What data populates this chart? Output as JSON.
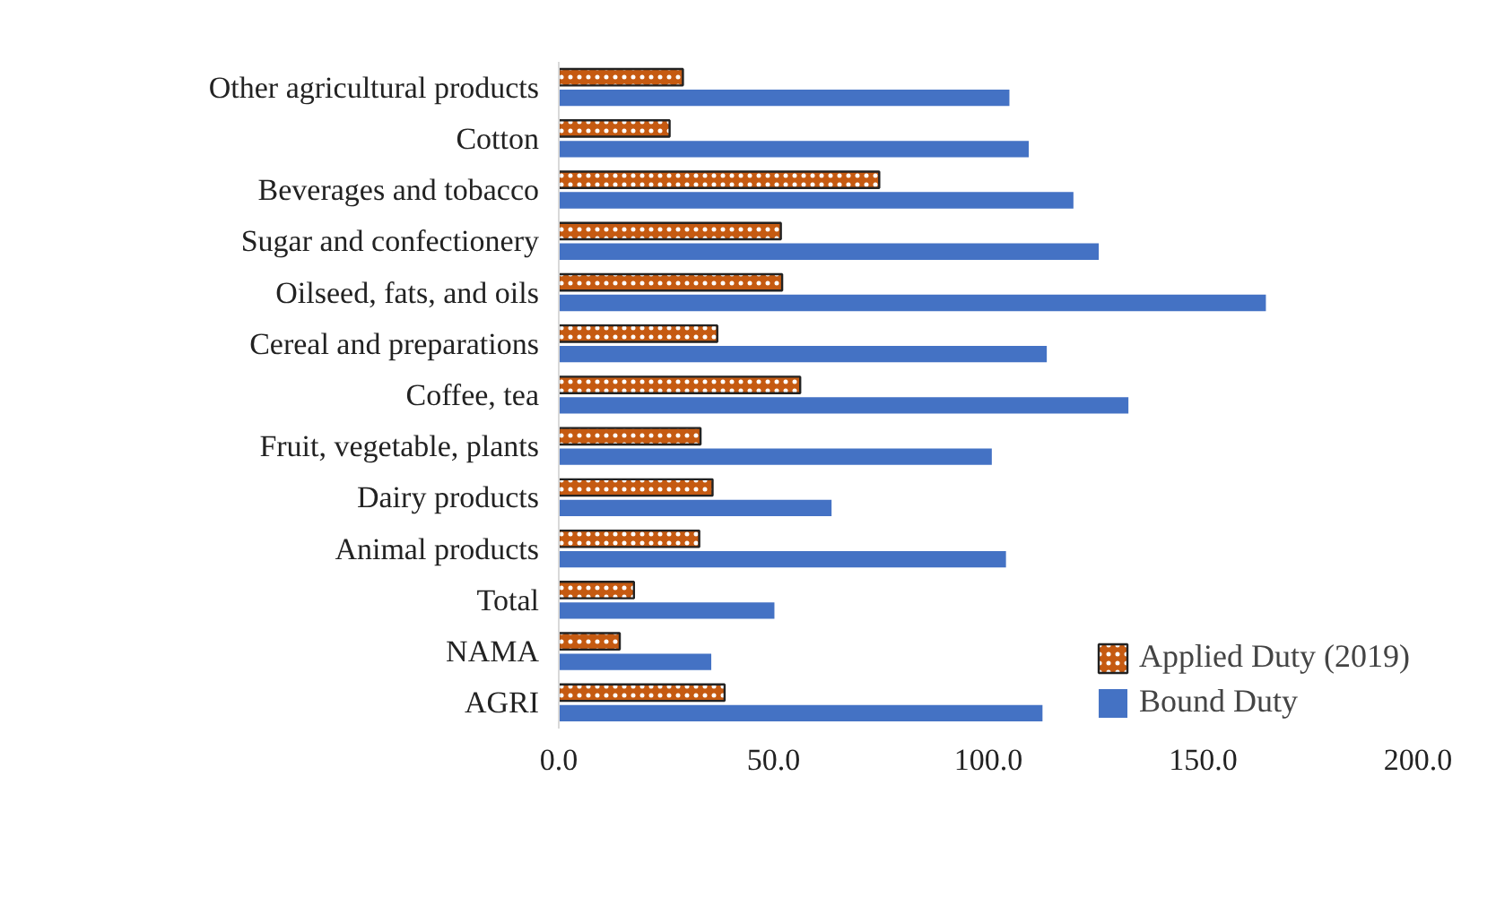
{
  "chart_data": {
    "type": "bar",
    "orientation": "horizontal",
    "categories": [
      "Other agricultural products",
      "Cotton",
      "Beverages and tobacco",
      "Sugar and confectionery",
      "Oilseed, fats, and oils",
      "Cereal and preparations",
      "Coffee, tea",
      "Fruit, vegetable, plants",
      "Dairy products",
      "Animal products",
      "Total",
      "NAMA",
      "AGRI"
    ],
    "series": [
      {
        "name": "Applied Duty (2019)",
        "color": "#c55a11",
        "values": [
          28.9,
          25.8,
          74.6,
          51.7,
          52.0,
          36.9,
          56.2,
          33.0,
          35.8,
          32.7,
          17.5,
          14.2,
          38.6
        ]
      },
      {
        "name": "Bound Duty",
        "color": "#4472c4",
        "values": [
          104.9,
          109.4,
          119.8,
          125.7,
          164.6,
          113.6,
          132.6,
          100.8,
          63.5,
          104.1,
          50.2,
          35.5,
          112.6
        ]
      }
    ],
    "xlim": [
      0,
      200
    ],
    "xticks": [
      {
        "value": 0,
        "label": "0.0"
      },
      {
        "value": 50,
        "label": "50.0"
      },
      {
        "value": 100,
        "label": "100.0"
      },
      {
        "value": 150,
        "label": "150.0"
      },
      {
        "value": 200,
        "label": "200.0"
      }
    ],
    "grid": false,
    "legend": "bottom"
  }
}
